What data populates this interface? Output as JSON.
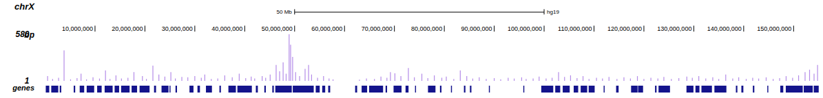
{
  "chart_data": {
    "type": "genome_browser",
    "title": "chrX",
    "assembly": "hg19",
    "scale_bar": {
      "label": "50 Mb",
      "start": 50000000,
      "end": 100000000
    },
    "xlim": [
      0,
      155270560
    ],
    "xticks": [
      {
        "value": 10000000,
        "label": "10,000,000"
      },
      {
        "value": 20000000,
        "label": "20,000,000"
      },
      {
        "value": 30000000,
        "label": "30,000,000"
      },
      {
        "value": 40000000,
        "label": "40,000,000"
      },
      {
        "value": 50000000,
        "label": "50,000,000"
      },
      {
        "value": 60000000,
        "label": "60,000,000"
      },
      {
        "value": 70000000,
        "label": "70,000,000"
      },
      {
        "value": 80000000,
        "label": "80,000,000"
      },
      {
        "value": 90000000,
        "label": "90,000,000"
      },
      {
        "value": 100000000,
        "label": "100,000,000"
      },
      {
        "value": 110000000,
        "label": "110,000,000"
      },
      {
        "value": 120000000,
        "label": "120,000,000"
      },
      {
        "value": 130000000,
        "label": "130,000,000"
      },
      {
        "value": 140000000,
        "label": "140,000,000"
      },
      {
        "value": 150000000,
        "label": "150,000,000"
      }
    ],
    "ylabel": "bp",
    "ylim": [
      1,
      580
    ],
    "yticks": [
      1,
      580
    ],
    "color": "#b48ce8",
    "x": [
      500000,
      1500000,
      2700000,
      3800000,
      5100000,
      6400000,
      7200000,
      8300000,
      9600000,
      10900000,
      12100000,
      13000000,
      14200000,
      15300000,
      16600000,
      17800000,
      19500000,
      20300000,
      21600000,
      22800000,
      24000000,
      25200000,
      26100000,
      27400000,
      28600000,
      30000000,
      31300000,
      32000000,
      33300000,
      34600000,
      36000000,
      37500000,
      38900000,
      40200000,
      41300000,
      42000000,
      43500000,
      44200000,
      45100000,
      46300000,
      47000000,
      47700000,
      48300000,
      48900000,
      49200000,
      49600000,
      50200000,
      51000000,
      52100000,
      52800000,
      53400000,
      54600000,
      55800000,
      56900000,
      57700000,
      63000000,
      64400000,
      66000000,
      67300000,
      68500000,
      69200000,
      70100000,
      71300000,
      72800000,
      74000000,
      75500000,
      76700000,
      78000000,
      79500000,
      80400000,
      81900000,
      83200000,
      84500000,
      85700000,
      87000000,
      88400000,
      90000000,
      91300000,
      92800000,
      94000000,
      95500000,
      96400000,
      97800000,
      99000000,
      100400000,
      101600000,
      102900000,
      104100000,
      105300000,
      106600000,
      107800000,
      109000000,
      110500000,
      111700000,
      113000000,
      114600000,
      116000000,
      117300000,
      118700000,
      120000000,
      121400000,
      122800000,
      124000000,
      125500000,
      127000000,
      128600000,
      129700000,
      131000000,
      132400000,
      133800000,
      135000000,
      136400000,
      137800000,
      139000000,
      140500000,
      141800000,
      143000000,
      144500000,
      145900000,
      147200000,
      148500000,
      149800000,
      151000000,
      152300000,
      153200000,
      154100000,
      154800000
    ],
    "values": [
      60,
      25,
      40,
      380,
      20,
      35,
      90,
      20,
      45,
      30,
      130,
      25,
      70,
      30,
      40,
      110,
      60,
      25,
      190,
      80,
      55,
      110,
      30,
      50,
      45,
      60,
      40,
      80,
      25,
      30,
      70,
      45,
      90,
      35,
      55,
      30,
      60,
      40,
      80,
      200,
      120,
      230,
      90,
      580,
      450,
      300,
      110,
      60,
      150,
      200,
      80,
      40,
      60,
      30,
      20,
      15,
      30,
      25,
      55,
      40,
      110,
      95,
      60,
      160,
      45,
      90,
      35,
      70,
      40,
      55,
      25,
      130,
      60,
      30,
      45,
      25,
      35,
      20,
      40,
      30,
      45,
      25,
      30,
      55,
      30,
      40,
      110,
      50,
      70,
      35,
      60,
      25,
      40,
      30,
      50,
      25,
      45,
      30,
      60,
      25,
      40,
      30,
      50,
      25,
      35,
      55,
      40,
      60,
      30,
      45,
      25,
      80,
      30,
      45,
      25,
      40,
      30,
      45,
      25,
      35,
      60,
      40,
      70,
      110,
      140,
      90,
      200
    ],
    "genes": {
      "label": "genes",
      "color": "#14148c",
      "starts": [
        200000,
        1300000,
        3000000,
        5800000,
        7000000,
        8400000,
        10500000,
        12000000,
        14000000,
        15300000,
        17400000,
        19000000,
        21900000,
        23400000,
        25000000,
        26200000,
        29000000,
        30600000,
        32300000,
        35000000,
        36800000,
        38600000,
        42300000,
        44000000,
        45600000,
        46200000,
        49700000,
        54300000,
        55600000,
        56800000,
        62200000,
        63500000,
        65000000,
        68300000,
        69900000,
        72300000,
        74200000,
        76800000,
        79200000,
        81400000,
        84000000,
        85200000,
        89000000,
        95900000,
        99500000,
        102300000,
        103800000,
        106000000,
        107400000,
        109000000,
        112000000,
        114500000,
        117500000,
        118900000,
        122300000,
        123000000,
        128600000,
        130400000,
        131600000,
        134200000,
        138500000,
        139600000,
        141900000,
        144800000,
        147400000,
        148500000,
        152100000,
        154100000
      ],
      "ends": [
        900000,
        2700000,
        3300000,
        6100000,
        7900000,
        9900000,
        11400000,
        13600000,
        14900000,
        17000000,
        18500000,
        21000000,
        22300000,
        24800000,
        25200000,
        26500000,
        29800000,
        31100000,
        33500000,
        35300000,
        38300000,
        41500000,
        42700000,
        44300000,
        45900000,
        49500000,
        53900000,
        55100000,
        56200000,
        57200000,
        62600000,
        64600000,
        67800000,
        68600000,
        71500000,
        72900000,
        74400000,
        78300000,
        79500000,
        81600000,
        84300000,
        85500000,
        89200000,
        96100000,
        101900000,
        103300000,
        105200000,
        106900000,
        108700000,
        110200000,
        112200000,
        115000000,
        118800000,
        119900000,
        122600000,
        125300000,
        130000000,
        131200000,
        133700000,
        136600000,
        138800000,
        140000000,
        142200000,
        145000000,
        148000000,
        151900000,
        153900000,
        155100000
      ]
    }
  }
}
